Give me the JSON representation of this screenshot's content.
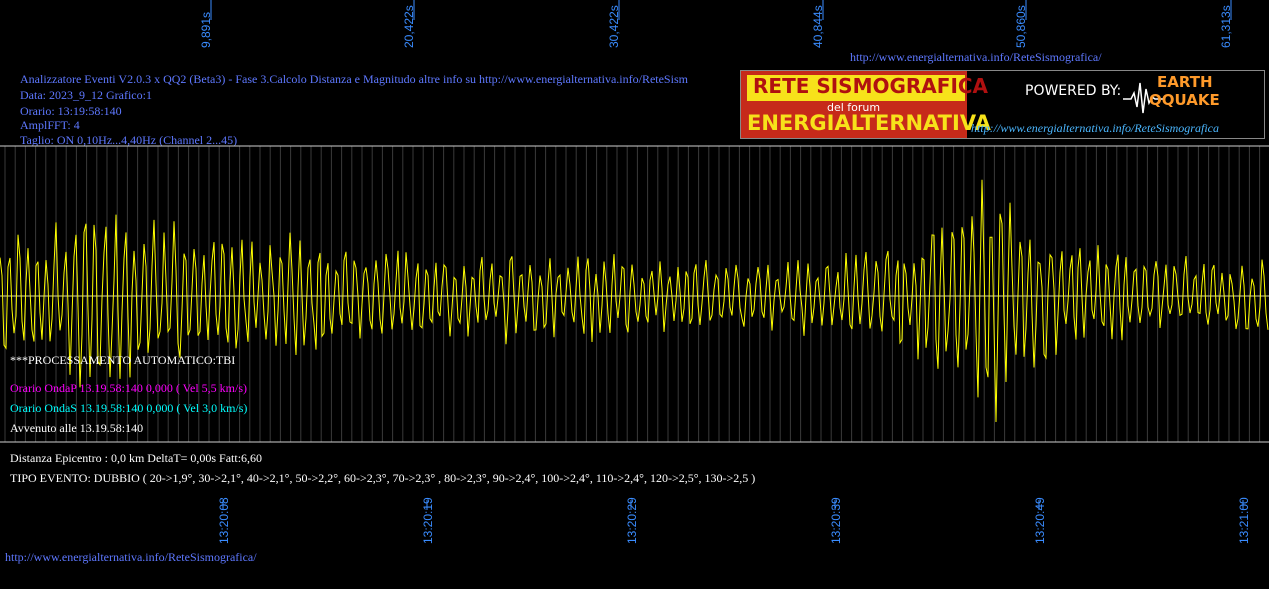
{
  "top_url": "http://www.energialternativa.info/ReteSismografica/",
  "bottom_url": "http://www.energialternativa.info/ReteSismografica/",
  "header": {
    "line1": "Analizzatore Eventi V2.0.3 x QQ2 (Beta3) - Fase 3.Calcolo Distanza e Magnitudo altre info su http://www.energialternativa.info/ReteSism",
    "line2": "Data: 2023_9_12 Grafico:1",
    "line3": "Orario: 13:19:58:140",
    "line4": "AmplFFT: 4",
    "line5": "Taglio: ON 0,10Hz...4,40Hz       (Channel 2...45)"
  },
  "banner": {
    "title1": "RETE SISMOGRAFICA",
    "title2": "del forum",
    "title3": "ENERGIALTERNATIVA",
    "powered": "POWERED BY:",
    "logo1": "EARTH",
    "logo2": "QQUAKE",
    "url": "http://www.energialternativa.info/ReteSismografica"
  },
  "info": {
    "processing": "***PROCESSAMENTO AUTOMATICO:TBI",
    "onda_p": "Orario OndaP 13.19.58:140  0,000 ( Vel 5,5 km/s)",
    "onda_s": "Orario OndaS 13.19.58:140  0,000 ( Vel 3,0 km/s)",
    "avvenuto": "Avvenuto alle 13.19.58:140",
    "distanza": "Distanza Epicentro : 0,0 km DeltaT= 0,00s  Fatt:6,60",
    "tipo": "TIPO EVENTO: DUBBIO ( 20->1,9°, 30->2,1°, 40->2,1°, 50->2,2°, 60->2,3°, 70->2,3° , 80->2,3°, 90->2,4°, 100->2,4°, 110->2,4°, 120->2,5°, 130->2,5 )"
  },
  "chart_data": {
    "type": "line",
    "top_axis_labels": [
      "9,891s",
      "20,422s",
      "30,422s",
      "40,844s",
      "50,860s",
      "61,313s"
    ],
    "bottom_axis_labels": [
      "13:20:08",
      "13:20:19",
      "13:20:29",
      "13:20:39",
      "13:20:49",
      "13:21:00"
    ],
    "series": [
      {
        "color": "#ffff00",
        "amplitude_envelope": [
          0.45,
          0.5,
          0.55,
          0.7,
          0.6,
          0.55,
          0.5,
          0.45,
          0.4,
          0.45,
          0.5,
          0.42,
          0.38,
          0.35,
          0.32,
          0.3,
          0.35,
          0.3,
          0.28,
          0.32,
          0.3,
          0.28,
          0.27,
          0.3,
          0.28,
          0.25,
          0.3,
          0.28,
          0.35,
          0.4,
          0.5,
          0.7,
          0.95,
          0.6,
          0.45,
          0.4,
          0.35,
          0.3,
          0.28,
          0.3,
          0.27,
          0.32
        ]
      }
    ],
    "grid": true
  }
}
